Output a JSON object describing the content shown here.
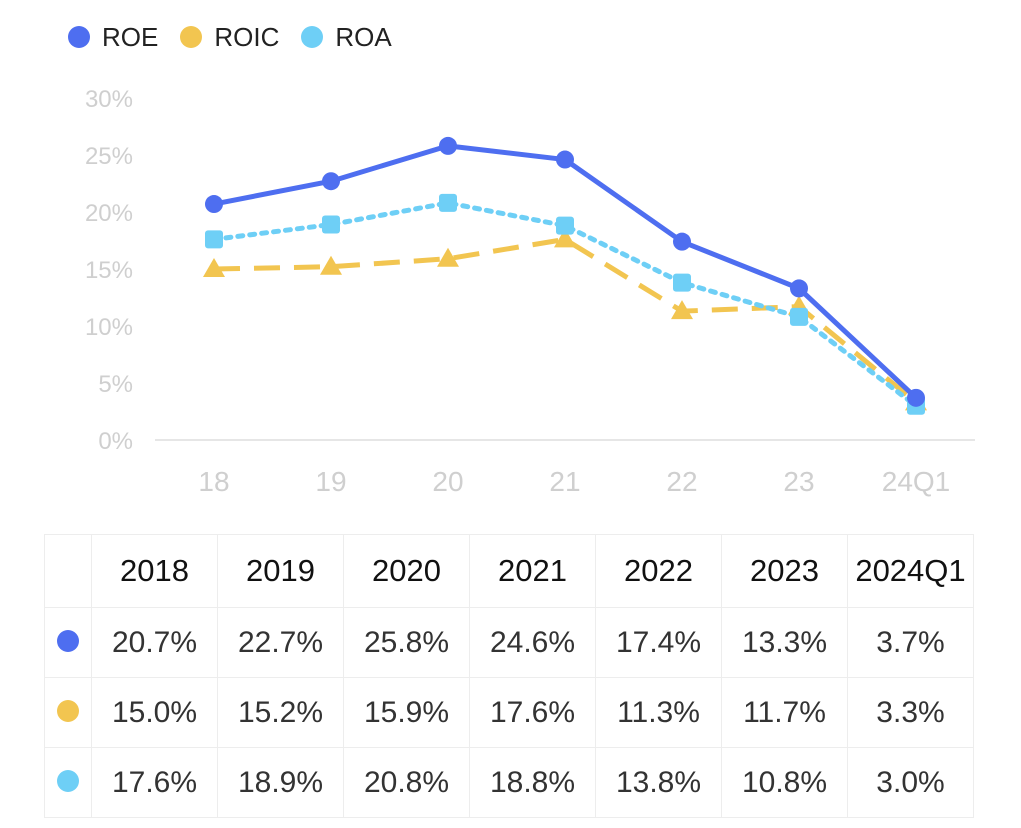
{
  "chart_data": {
    "type": "line",
    "categories": [
      "18",
      "19",
      "20",
      "21",
      "22",
      "23",
      "24Q1"
    ],
    "y_ticks": [
      "0%",
      "5%",
      "10%",
      "15%",
      "20%",
      "25%",
      "30%"
    ],
    "ylim": [
      0,
      30
    ],
    "legend_position": "top-left",
    "series": [
      {
        "name": "ROE",
        "color": "#4e6ef0",
        "marker": "circle",
        "line": "solid",
        "values": [
          20.7,
          22.7,
          25.8,
          24.6,
          17.4,
          13.3,
          3.7
        ]
      },
      {
        "name": "ROIC",
        "color": "#f2c550",
        "marker": "triangle",
        "line": "dashed",
        "values": [
          15.0,
          15.2,
          15.9,
          17.6,
          11.3,
          11.7,
          3.3
        ]
      },
      {
        "name": "ROA",
        "color": "#6ecff6",
        "marker": "square",
        "line": "dotted",
        "values": [
          17.6,
          18.9,
          20.8,
          18.8,
          13.8,
          10.8,
          3.0
        ]
      }
    ]
  },
  "table": {
    "headers": [
      "2018",
      "2019",
      "2020",
      "2021",
      "2022",
      "2023",
      "2024Q1"
    ],
    "rows": [
      {
        "series": "ROE",
        "color": "#4e6ef0",
        "cells": [
          "20.7%",
          "22.7%",
          "25.8%",
          "24.6%",
          "17.4%",
          "13.3%",
          "3.7%"
        ]
      },
      {
        "series": "ROIC",
        "color": "#f2c550",
        "cells": [
          "15.0%",
          "15.2%",
          "15.9%",
          "17.6%",
          "11.3%",
          "11.7%",
          "3.3%"
        ]
      },
      {
        "series": "ROA",
        "color": "#6ecff6",
        "cells": [
          "17.6%",
          "18.9%",
          "20.8%",
          "18.8%",
          "13.8%",
          "10.8%",
          "3.0%"
        ]
      }
    ]
  }
}
